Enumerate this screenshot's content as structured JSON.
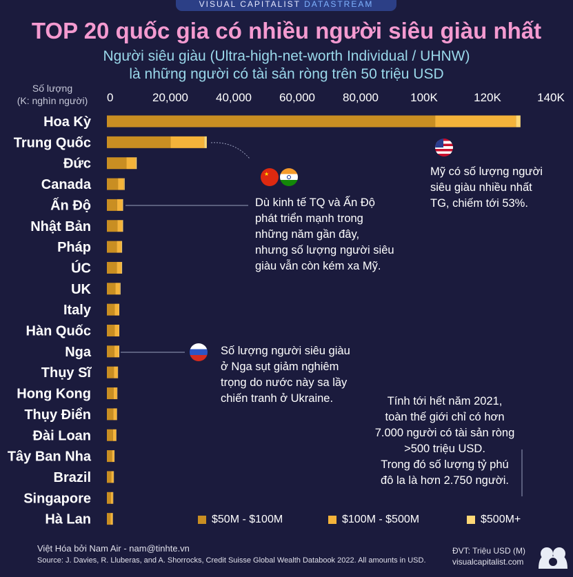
{
  "banner": {
    "part1": "VISUAL CAPITALIST",
    "part2": "DATASTREAM"
  },
  "title": "TOP 20 quốc gia có nhiều người siêu giàu nhất",
  "subtitle_line1": "Người siêu giàu (Ultra-high-net-worth Individual / UHNW)",
  "subtitle_line2": "là những người có tài sản ròng trên 50 triệu USD",
  "axis_label_line1": "Số lượng",
  "axis_label_line2": "(K: nghìn người)",
  "chart_data": {
    "type": "bar",
    "orientation": "horizontal",
    "stacked": true,
    "categories": [
      "Hoa Kỳ",
      "Trung Quốc",
      "Đức",
      "Canada",
      "Ấn Độ",
      "Nhật Bản",
      "Pháp",
      "ÚC",
      "UK",
      "Italy",
      "Hàn Quốc",
      "Nga",
      "Thụy Sĩ",
      "Hong Kong",
      "Thụy Điển",
      "Đài Loan",
      "Tây Ban Nha",
      "Brazil",
      "Singapore",
      "Hà Lan"
    ],
    "series": [
      {
        "name": "$50M - $100M",
        "color": "#c98e22",
        "values": [
          103500,
          20100,
          6200,
          3500,
          3200,
          3300,
          3100,
          3100,
          2700,
          2500,
          2500,
          2400,
          2200,
          2100,
          2000,
          1900,
          1600,
          1400,
          1300,
          1200
        ]
      },
      {
        "name": "$100M - $500M",
        "color": "#f4b33a",
        "values": [
          25500,
          10600,
          2900,
          1900,
          1700,
          1600,
          1500,
          1500,
          1400,
          1300,
          1300,
          1300,
          1200,
          1100,
          1100,
          1000,
          700,
          700,
          600,
          600
        ]
      },
      {
        "name": "$500M+",
        "color": "#ffd876",
        "values": [
          1400,
          800,
          300,
          200,
          200,
          200,
          200,
          200,
          200,
          100,
          100,
          200,
          100,
          100,
          100,
          100,
          100,
          100,
          100,
          100
        ]
      }
    ],
    "xlim": [
      0,
      140000
    ],
    "tick_values": [
      0,
      20000,
      40000,
      60000,
      80000,
      100000,
      120000,
      140000
    ],
    "tick_labels": [
      "0",
      "20,000",
      "40,000",
      "60,000",
      "80,000",
      "100K",
      "120K",
      "140K"
    ]
  },
  "notes": {
    "usa": [
      "Mỹ có số lượng người",
      "siêu giàu nhiều nhất",
      "TG, chiếm tới 53%."
    ],
    "china_india": [
      "Dù kinh tế TQ và Ấn Độ",
      "phát triển mạnh trong",
      "những năm gần đây,",
      "nhưng số lượng người siêu",
      "giàu vẫn còn kém xa Mỹ."
    ],
    "russia": [
      "Số lượng người siêu giàu",
      "ở Nga sụt giảm nghiêm",
      "trọng do nước này sa lầy",
      "chiến tranh ở Ukraine."
    ],
    "world": [
      "Tính tới hết năm 2021,",
      "toàn thế giới chỉ có hơn",
      "7.000 người có tài sản ròng",
      ">500 triệu USD.",
      "Trong đó số lượng tỷ phú",
      "đô la là hơn 2.750 người."
    ]
  },
  "footer": {
    "credit": "Việt Hóa bởi Nam Air - nam@tinhte.vn",
    "source": "Source: J. Davies, R. Lluberas, and A. Shorrocks, Credit Suisse Global Wealth Databook 2022. All amounts in USD.",
    "unit": "ĐVT: Triệu USD (M)",
    "site": "visualcapitalist.com"
  },
  "colors": {
    "background": "#1b1b3d",
    "title": "#f49ad0",
    "subtitle": "#9ad8ea"
  }
}
